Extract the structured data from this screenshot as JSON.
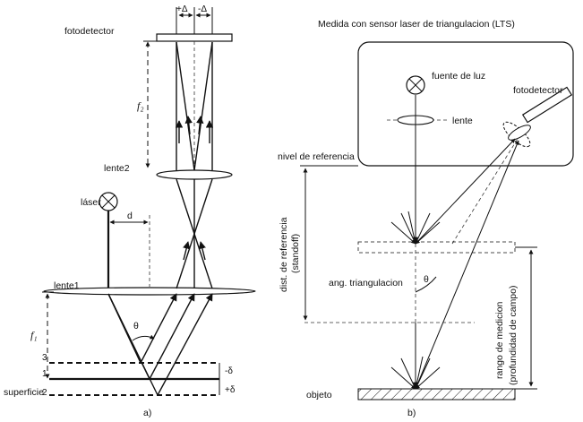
{
  "panel_a": {
    "photodetector_label": "fotodetector",
    "plus_delta": "+Δ",
    "minus_delta": "-Δ",
    "f2_label": "f₂",
    "lens2_label": "lente2",
    "laser_label": "láser",
    "d_label": "d",
    "lens1_label": "lente1",
    "theta_label": "θ",
    "f1_label": "f₁",
    "level_3": "3",
    "level_1": "1",
    "level_2": "2",
    "minus_delta_small": "-δ",
    "plus_delta_small": "+δ",
    "surface_label": "superficie",
    "caption": "a)"
  },
  "panel_b": {
    "title": "Medida con sensor laser de triangulacion (LTS)",
    "light_source_label": "fuente de luz",
    "photodetector_label": "fotodetector",
    "lens_label": "lente",
    "reference_level_label": "nivel de referencia",
    "reference_distance_label": "dist. de referencia",
    "standoff_label": "(standoff)",
    "triangulation_angle_label": "ang. triangulacion",
    "theta_label": "θ",
    "measuring_range_label": "rango de medicion",
    "depth_of_field_label": "(profundidad de campo)",
    "object_label": "objeto",
    "caption": "b)"
  }
}
